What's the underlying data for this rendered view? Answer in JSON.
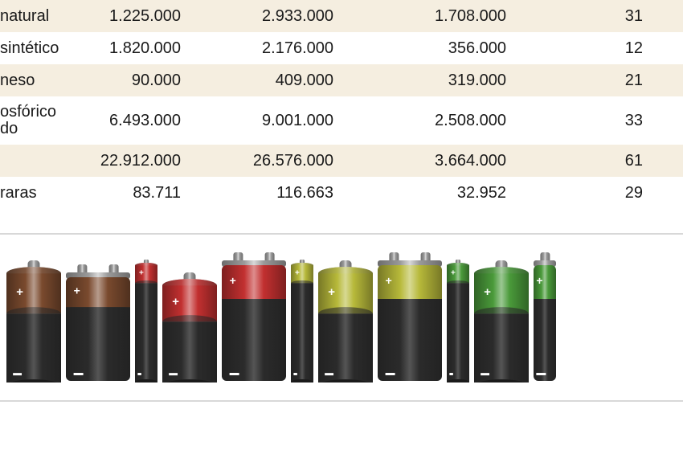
{
  "table": {
    "rows": [
      {
        "alt": true,
        "label": "natural",
        "c1": "1.225.000",
        "c2": "2.933.000",
        "c3": "1.708.000",
        "c4": "31"
      },
      {
        "alt": false,
        "label": "sintético",
        "c1": "1.820.000",
        "c2": "2.176.000",
        "c3": "356.000",
        "c4": "12"
      },
      {
        "alt": true,
        "label": "neso",
        "c1": "90.000",
        "c2": "409.000",
        "c3": "319.000",
        "c4": "21"
      },
      {
        "alt": false,
        "label": "osfórico\ndo",
        "c1": "6.493.000",
        "c2": "9.001.000",
        "c3": "2.508.000",
        "c4": "33",
        "multi": true
      },
      {
        "alt": true,
        "label": "",
        "c1": "22.912.000",
        "c2": "26.576.000",
        "c3": "3.664.000",
        "c4": "61"
      },
      {
        "alt": false,
        "label": "raras",
        "c1": "83.711",
        "c2": "116.663",
        "c3": "32.952",
        "c4": "29"
      }
    ]
  },
  "batteries": [
    {
      "type": "d-cell",
      "top": "#7a4a2e",
      "bodyW": 68,
      "bodyH": 140,
      "capH": 50
    },
    {
      "type": "9v",
      "top": "#7a4a2e",
      "bodyW": 80,
      "bodyH": 135
    },
    {
      "type": "aa",
      "top": "#c23030",
      "bodyW": 28,
      "bodyH": 145,
      "capH": 22
    },
    {
      "type": "d-cell",
      "top": "#c23030",
      "bodyW": 68,
      "bodyH": 125,
      "capH": 45
    },
    {
      "type": "9v",
      "top": "#c23030",
      "bodyW": 80,
      "bodyH": 150
    },
    {
      "type": "aa",
      "top": "#b7b93a",
      "bodyW": 28,
      "bodyH": 145,
      "capH": 22
    },
    {
      "type": "d-cell",
      "top": "#b7b93a",
      "bodyW": 68,
      "bodyH": 140,
      "capH": 50
    },
    {
      "type": "9v",
      "top": "#b7b93a",
      "bodyW": 80,
      "bodyH": 150
    },
    {
      "type": "aa",
      "top": "#4a9a3a",
      "bodyW": 28,
      "bodyH": 145,
      "capH": 22
    },
    {
      "type": "d-cell",
      "top": "#4a9a3a",
      "bodyW": 68,
      "bodyH": 140,
      "capH": 50
    },
    {
      "type": "9v-part",
      "top": "#4a9a3a",
      "bodyW": 28,
      "bodyH": 150
    }
  ],
  "colors": {
    "body_black": "#2b2b2b",
    "body_black_hi": "#555555",
    "terminal": "#9a9a9a",
    "terminal_hi": "#d8d8d8",
    "plus_minus": "#ffffff"
  }
}
